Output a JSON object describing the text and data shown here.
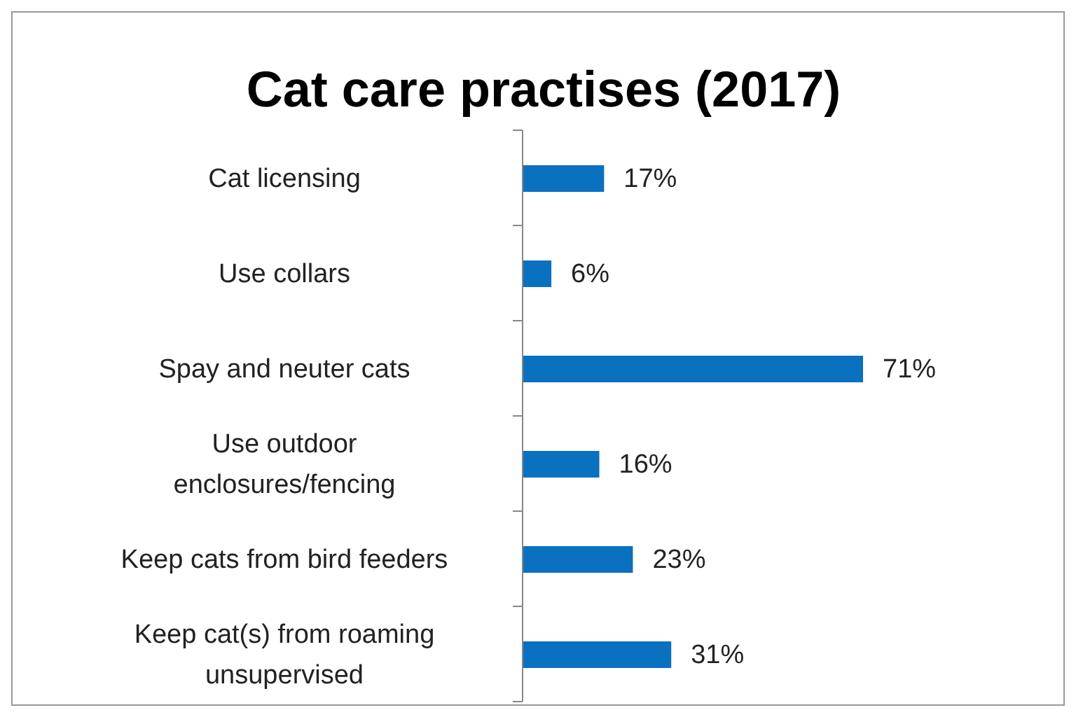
{
  "chart_data": {
    "type": "bar",
    "orientation": "horizontal",
    "title": "Cat care practises (2017)",
    "categories": [
      "Cat licensing",
      "Use collars",
      "Spay and neuter cats",
      "Use outdoor enclosures/fencing",
      "Keep cats from bird feeders",
      "Keep cat(s) from roaming unsupervised"
    ],
    "values": [
      17,
      6,
      71,
      16,
      23,
      31
    ],
    "value_labels": [
      "17%",
      "6%",
      "71%",
      "16%",
      "23%",
      "31%"
    ],
    "color": "#0a70c0"
  }
}
